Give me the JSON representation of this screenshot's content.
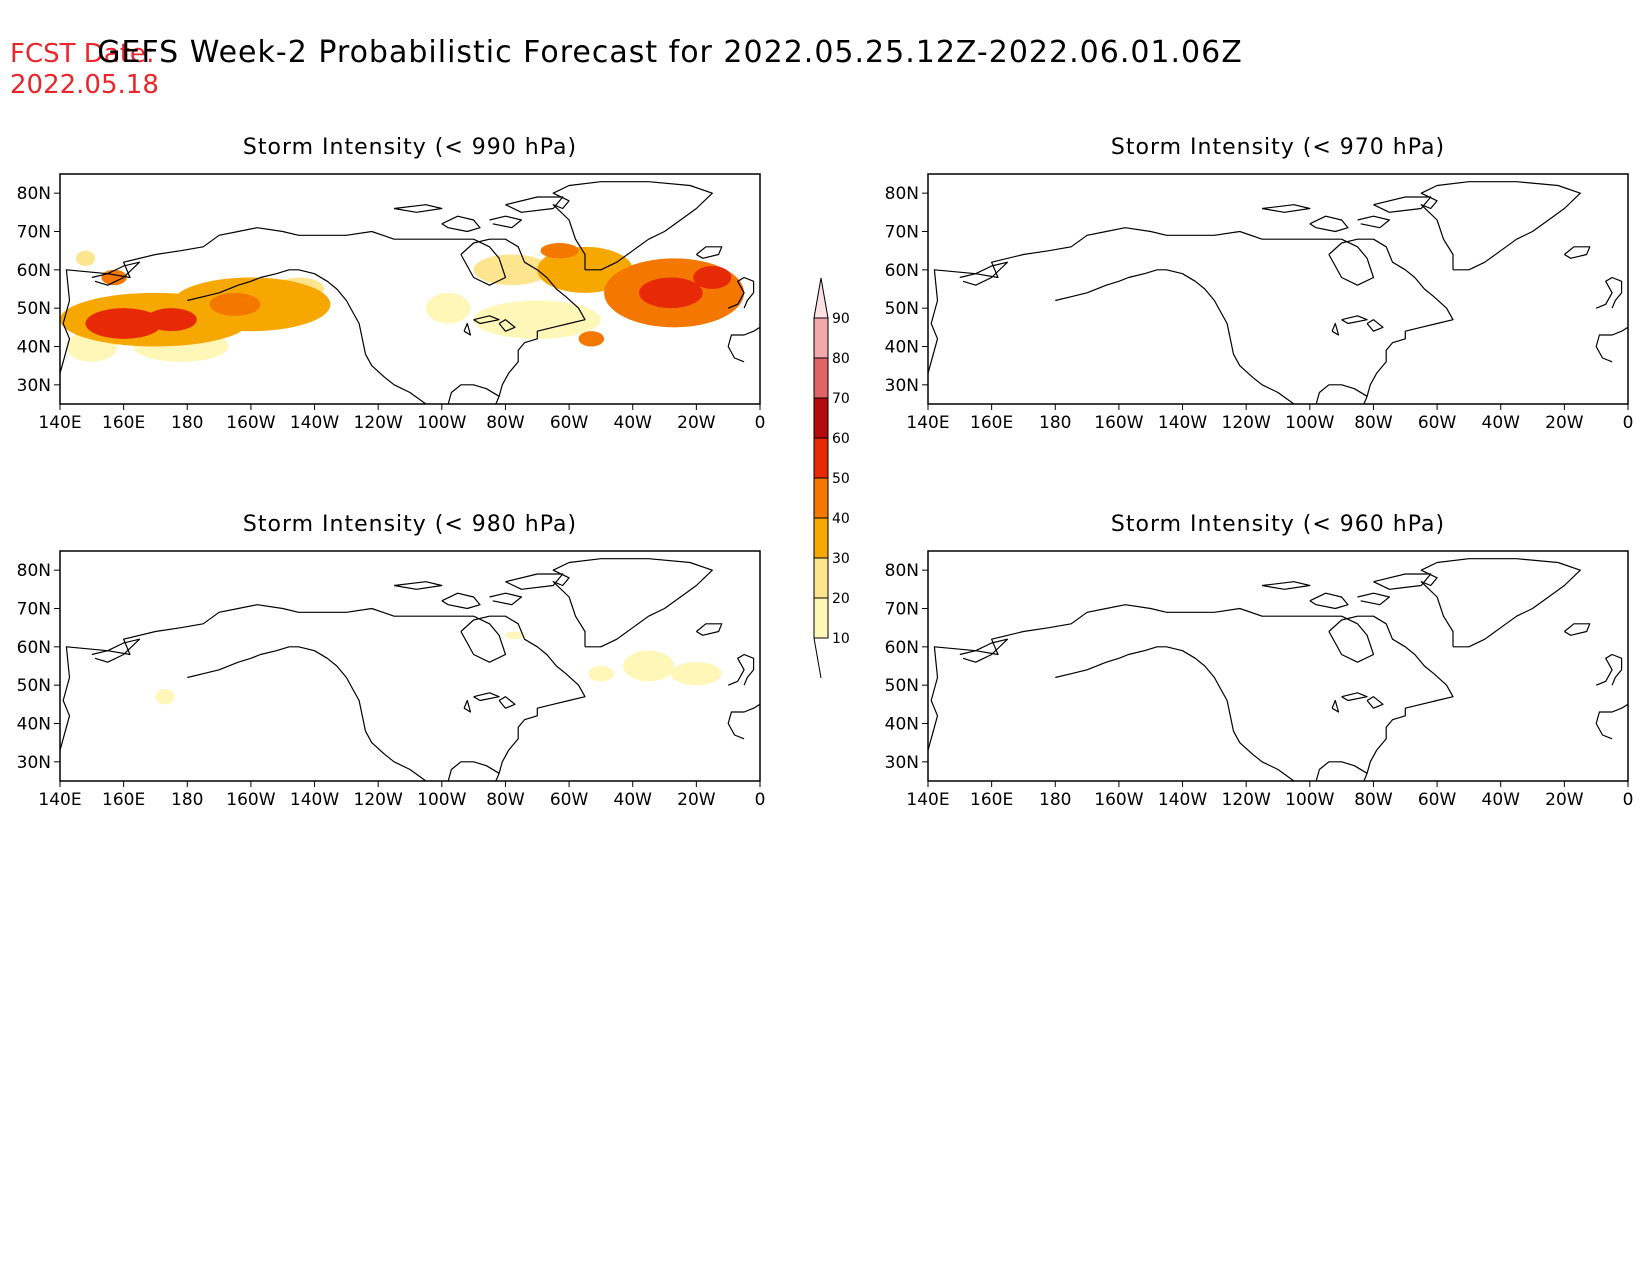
{
  "header": {
    "fcst_label": "FCST Date:",
    "fcst_date": "2022.05.18",
    "title": "GEFS Week-2 Probabilistic Forecast for 2022.05.25.12Z-2022.06.01.06Z"
  },
  "colors": {
    "fcst_text": "#e8262b",
    "title_text": "#000000",
    "coastline": "#000000",
    "background": "#ffffff"
  },
  "axes": {
    "lat_ticks": [
      "80N",
      "70N",
      "60N",
      "50N",
      "40N",
      "30N"
    ],
    "lat_values": [
      80,
      70,
      60,
      50,
      40,
      30
    ],
    "lon_ticks": [
      "140E",
      "160E",
      "180",
      "160W",
      "140W",
      "120W",
      "100W",
      "80W",
      "60W",
      "40W",
      "20W",
      "0"
    ],
    "lon_values": [
      140,
      160,
      180,
      200,
      220,
      240,
      260,
      280,
      300,
      320,
      340,
      360
    ],
    "lon_range": [
      140,
      360
    ],
    "lat_range": [
      25,
      85
    ]
  },
  "colorbar": {
    "labels": [
      "90",
      "80",
      "70",
      "60",
      "50",
      "40",
      "30",
      "20",
      "10"
    ],
    "levels": [
      {
        "from": 10,
        "to": 20,
        "color": "#fff7b7"
      },
      {
        "from": 20,
        "to": 30,
        "color": "#fde58f"
      },
      {
        "from": 30,
        "to": 40,
        "color": "#f7a800"
      },
      {
        "from": 40,
        "to": 50,
        "color": "#f47700"
      },
      {
        "from": 50,
        "to": 60,
        "color": "#e72a05"
      },
      {
        "from": 60,
        "to": 70,
        "color": "#b40c0c"
      },
      {
        "from": 70,
        "to": 80,
        "color": "#df6466"
      },
      {
        "from": 80,
        "to": 90,
        "color": "#f2a9ab"
      },
      {
        "from": 90,
        "to": 100,
        "color": "#fde1e2"
      }
    ]
  },
  "panels": [
    {
      "id": "p990",
      "title": "Storm Intensity (< 990 hPa)",
      "blobs": [
        {
          "lon": 170,
          "lat": 47,
          "rlon": 30,
          "rlat": 7,
          "v": 35
        },
        {
          "lon": 160,
          "lat": 46,
          "rlon": 12,
          "rlat": 4,
          "v": 55
        },
        {
          "lon": 175,
          "lat": 47,
          "rlon": 8,
          "rlat": 3,
          "v": 55
        },
        {
          "lon": 200,
          "lat": 51,
          "rlon": 25,
          "rlat": 7,
          "v": 30
        },
        {
          "lon": 195,
          "lat": 51,
          "rlon": 8,
          "rlat": 3,
          "v": 45
        },
        {
          "lon": 150,
          "lat": 40,
          "rlon": 8,
          "rlat": 4,
          "v": 15
        },
        {
          "lon": 178,
          "lat": 40,
          "rlon": 15,
          "rlat": 4,
          "v": 15
        },
        {
          "lon": 215,
          "lat": 55,
          "rlon": 8,
          "rlat": 3,
          "v": 20
        },
        {
          "lon": 157,
          "lat": 58,
          "rlon": 4,
          "rlat": 2,
          "v": 40
        },
        {
          "lon": 148,
          "lat": 63,
          "rlon": 3,
          "rlat": 2,
          "v": 20
        },
        {
          "lon": 333,
          "lat": 54,
          "rlon": 22,
          "rlat": 9,
          "v": 45
        },
        {
          "lon": 332,
          "lat": 54,
          "rlon": 10,
          "rlat": 4,
          "v": 55
        },
        {
          "lon": 345,
          "lat": 58,
          "rlon": 6,
          "rlat": 3,
          "v": 55
        },
        {
          "lon": 305,
          "lat": 60,
          "rlon": 15,
          "rlat": 6,
          "v": 35
        },
        {
          "lon": 282,
          "lat": 60,
          "rlon": 12,
          "rlat": 4,
          "v": 20
        },
        {
          "lon": 290,
          "lat": 47,
          "rlon": 20,
          "rlat": 5,
          "v": 12
        },
        {
          "lon": 262,
          "lat": 50,
          "rlon": 7,
          "rlat": 4,
          "v": 12
        },
        {
          "lon": 307,
          "lat": 42,
          "rlon": 4,
          "rlat": 2,
          "v": 45
        },
        {
          "lon": 297,
          "lat": 65,
          "rlon": 6,
          "rlat": 2,
          "v": 40
        }
      ]
    },
    {
      "id": "p970",
      "title": "Storm Intensity (< 970 hPa)",
      "blobs": []
    },
    {
      "id": "p980",
      "title": "Storm Intensity (< 980 hPa)",
      "blobs": [
        {
          "lon": 325,
          "lat": 55,
          "rlon": 8,
          "rlat": 4,
          "v": 15
        },
        {
          "lon": 340,
          "lat": 53,
          "rlon": 8,
          "rlat": 3,
          "v": 15
        },
        {
          "lon": 310,
          "lat": 53,
          "rlon": 4,
          "rlat": 2,
          "v": 15
        },
        {
          "lon": 173,
          "lat": 47,
          "rlon": 3,
          "rlat": 2,
          "v": 15
        },
        {
          "lon": 283,
          "lat": 63,
          "rlon": 3,
          "rlat": 1,
          "v": 12
        }
      ]
    },
    {
      "id": "p960",
      "title": "Storm Intensity (< 960 hPa)",
      "blobs": []
    }
  ],
  "coastlines": [
    [
      [
        140,
        33
      ],
      [
        143,
        42
      ],
      [
        141,
        46
      ],
      [
        143,
        52
      ],
      [
        142,
        60
      ],
      [
        155,
        59
      ],
      [
        162,
        58
      ],
      [
        160,
        62
      ],
      [
        170,
        64
      ],
      [
        178,
        65
      ],
      [
        185,
        66
      ],
      [
        190,
        69
      ],
      [
        196,
        70
      ],
      [
        202,
        71
      ],
      [
        210,
        70
      ],
      [
        215,
        69
      ],
      [
        222,
        69
      ],
      [
        230,
        69
      ],
      [
        238,
        70
      ],
      [
        245,
        68
      ],
      [
        255,
        68
      ],
      [
        262,
        68
      ],
      [
        270,
        68
      ],
      [
        275,
        66
      ],
      [
        278,
        63
      ],
      [
        280,
        58
      ],
      [
        275,
        56
      ],
      [
        270,
        58
      ],
      [
        268,
        61
      ],
      [
        266,
        64
      ]
    ],
    [
      [
        266,
        64
      ],
      [
        270,
        67
      ],
      [
        275,
        68
      ],
      [
        280,
        68
      ],
      [
        284,
        66
      ],
      [
        286,
        62
      ],
      [
        290,
        60
      ],
      [
        293,
        58
      ],
      [
        296,
        55
      ],
      [
        299,
        53
      ],
      [
        303,
        50
      ],
      [
        305,
        47
      ],
      [
        300,
        46
      ],
      [
        295,
        45
      ],
      [
        290,
        44
      ],
      [
        290,
        42
      ],
      [
        286,
        41
      ],
      [
        284,
        39
      ],
      [
        284,
        36
      ],
      [
        281,
        33
      ],
      [
        279,
        30
      ],
      [
        278,
        27
      ],
      [
        277,
        25
      ]
    ],
    [
      [
        200,
        57
      ],
      [
        203,
        58
      ],
      [
        208,
        59
      ],
      [
        212,
        60
      ],
      [
        215,
        60
      ],
      [
        220,
        59
      ],
      [
        224,
        57
      ],
      [
        227,
        55
      ],
      [
        230,
        52
      ],
      [
        232,
        49
      ],
      [
        234,
        46
      ],
      [
        235,
        42
      ],
      [
        236,
        38
      ],
      [
        238,
        35
      ],
      [
        242,
        32
      ],
      [
        245,
        30
      ],
      [
        250,
        28
      ],
      [
        255,
        25
      ]
    ],
    [
      [
        200,
        57
      ],
      [
        196,
        56
      ],
      [
        190,
        54
      ],
      [
        185,
        53
      ],
      [
        180,
        52
      ]
    ],
    [
      [
        262,
        25
      ],
      [
        263,
        28
      ],
      [
        266,
        30
      ],
      [
        270,
        30
      ],
      [
        274,
        29
      ],
      [
        278,
        27
      ]
    ],
    [
      [
        305,
        60
      ],
      [
        310,
        60
      ],
      [
        315,
        62
      ],
      [
        320,
        65
      ],
      [
        325,
        68
      ],
      [
        330,
        70
      ],
      [
        335,
        73
      ],
      [
        340,
        76
      ],
      [
        345,
        80
      ],
      [
        338,
        82
      ],
      [
        325,
        83
      ],
      [
        310,
        83
      ],
      [
        300,
        82
      ],
      [
        295,
        80
      ],
      [
        300,
        78
      ],
      [
        298,
        76
      ],
      [
        295,
        77
      ],
      [
        300,
        73
      ],
      [
        302,
        68
      ],
      [
        305,
        64
      ],
      [
        305,
        60
      ]
    ],
    [
      [
        340,
        64
      ],
      [
        343,
        66
      ],
      [
        348,
        66
      ],
      [
        347,
        64
      ],
      [
        342,
        63
      ],
      [
        340,
        64
      ]
    ],
    [
      [
        350,
        50
      ],
      [
        353,
        51
      ],
      [
        355,
        54
      ],
      [
        353,
        57
      ],
      [
        355,
        58
      ],
      [
        358,
        57
      ],
      [
        358,
        54
      ],
      [
        356,
        52
      ],
      [
        355,
        50
      ]
    ],
    [
      [
        355,
        36
      ],
      [
        352,
        37
      ],
      [
        350,
        40
      ],
      [
        351,
        43
      ],
      [
        355,
        43
      ],
      [
        358,
        44
      ],
      [
        360,
        45
      ]
    ],
    [
      [
        260,
        72
      ],
      [
        265,
        74
      ],
      [
        270,
        73
      ],
      [
        272,
        71
      ],
      [
        268,
        70
      ],
      [
        262,
        71
      ],
      [
        260,
        72
      ]
    ],
    [
      [
        275,
        73
      ],
      [
        280,
        74
      ],
      [
        285,
        73
      ],
      [
        282,
        71
      ],
      [
        276,
        72
      ]
    ],
    [
      [
        245,
        76
      ],
      [
        255,
        77
      ],
      [
        260,
        76
      ],
      [
        252,
        75
      ],
      [
        245,
        76
      ]
    ],
    [
      [
        280,
        77
      ],
      [
        290,
        79
      ],
      [
        298,
        79
      ],
      [
        295,
        76
      ],
      [
        285,
        75
      ],
      [
        280,
        77
      ]
    ],
    [
      [
        278,
        46
      ],
      [
        280,
        47
      ],
      [
        283,
        45
      ],
      [
        280,
        44
      ],
      [
        278,
        46
      ]
    ],
    [
      [
        270,
        47
      ],
      [
        275,
        48
      ],
      [
        278,
        47
      ],
      [
        272,
        46
      ],
      [
        270,
        47
      ]
    ],
    [
      [
        267,
        44
      ],
      [
        268,
        46
      ],
      [
        269,
        43
      ],
      [
        267,
        44
      ]
    ],
    [
      [
        150,
        58
      ],
      [
        155,
        59
      ],
      [
        160,
        61
      ],
      [
        165,
        62
      ],
      [
        160,
        58
      ],
      [
        155,
        56
      ],
      [
        151,
        57
      ]
    ]
  ]
}
